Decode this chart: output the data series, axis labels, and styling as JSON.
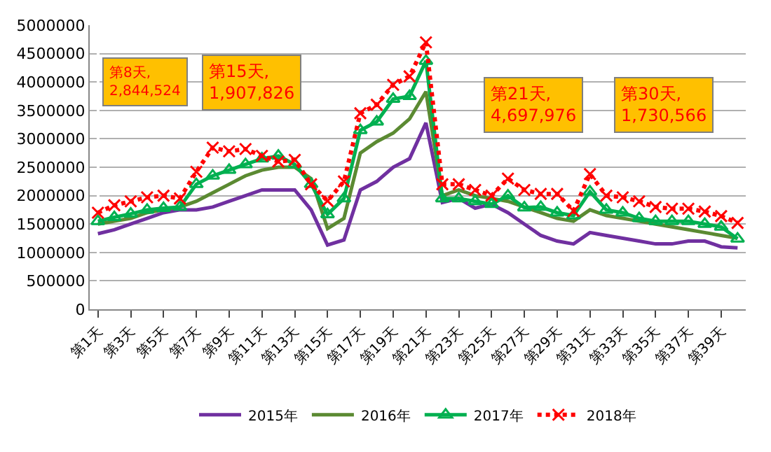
{
  "chart_data": {
    "type": "line",
    "categories": [
      "第1天",
      null,
      "第3天",
      null,
      "第5天",
      null,
      "第7天",
      null,
      "第9天",
      null,
      "第11天",
      null,
      "第13天",
      null,
      "第15天",
      null,
      "第17天",
      null,
      "第19天",
      null,
      "第21天",
      null,
      "第23天",
      null,
      "第25天",
      null,
      "第27天",
      null,
      "第29天",
      null,
      "第31天",
      null,
      "第33天",
      null,
      "第35天",
      null,
      "第37天",
      null,
      "第39天",
      null
    ],
    "series": [
      {
        "name": "2015年",
        "color": "#7030a0",
        "marker": "none",
        "line_style": "solid",
        "values": [
          1330000,
          1400000,
          1500000,
          1600000,
          1700000,
          1750000,
          1750000,
          1800000,
          1900000,
          2000000,
          2100000,
          2100000,
          2100000,
          1750000,
          1130000,
          1220000,
          2100000,
          2250000,
          2500000,
          2650000,
          3280000,
          1880000,
          1950000,
          1780000,
          1850000,
          1700000,
          1500000,
          1300000,
          1200000,
          1150000,
          1350000,
          1300000,
          1250000,
          1200000,
          1150000,
          1150000,
          1200000,
          1200000,
          1100000,
          1080000
        ]
      },
      {
        "name": "2016年",
        "color": "#5b8a32",
        "marker": "none",
        "line_style": "solid",
        "values": [
          1500000,
          1550000,
          1600000,
          1700000,
          1750000,
          1800000,
          1900000,
          2050000,
          2200000,
          2350000,
          2450000,
          2500000,
          2500000,
          2300000,
          1420000,
          1600000,
          2750000,
          2950000,
          3100000,
          3350000,
          3830000,
          2000000,
          2100000,
          2000000,
          1950000,
          1900000,
          1800000,
          1700000,
          1600000,
          1550000,
          1750000,
          1650000,
          1600000,
          1550000,
          1500000,
          1450000,
          1400000,
          1350000,
          1300000,
          1250000
        ]
      },
      {
        "name": "2017年",
        "color": "#00b050",
        "marker": "triangle",
        "line_style": "solid",
        "values": [
          1550000,
          1620000,
          1680000,
          1750000,
          1780000,
          1800000,
          2200000,
          2350000,
          2450000,
          2550000,
          2650000,
          2700000,
          2550000,
          2200000,
          1670000,
          1950000,
          3150000,
          3300000,
          3700000,
          3750000,
          4370000,
          1950000,
          1950000,
          1900000,
          1850000,
          2000000,
          1790000,
          1800000,
          1700000,
          1650000,
          2070000,
          1750000,
          1700000,
          1600000,
          1550000,
          1550000,
          1550000,
          1500000,
          1450000,
          1240000
        ]
      },
      {
        "name": "2018年",
        "color": "#ff0000",
        "marker": "cross",
        "line_style": "dotted",
        "values": [
          1700000,
          1830000,
          1900000,
          1970000,
          2000000,
          1950000,
          2420000,
          2844524,
          2780000,
          2820000,
          2700000,
          2600000,
          2630000,
          2200000,
          1907826,
          2250000,
          3450000,
          3600000,
          3950000,
          4100000,
          4697976,
          2200000,
          2200000,
          2100000,
          2000000,
          2300000,
          2100000,
          2030000,
          2030000,
          1730566,
          2380000,
          2000000,
          1970000,
          1900000,
          1800000,
          1770000,
          1770000,
          1720000,
          1640000,
          1520000
        ]
      }
    ],
    "annotations": [
      "第8天,\n2,844,524",
      "第15天,\n1,907,826",
      "第21天,\n4,697,976",
      "第30天,\n1,730,566"
    ],
    "ylim": [
      0,
      5000000
    ],
    "yticks": [
      0,
      500000,
      1000000,
      1500000,
      2000000,
      2500000,
      3000000,
      3500000,
      4000000,
      4500000,
      5000000
    ],
    "grid": "y",
    "legend": "bottom"
  }
}
